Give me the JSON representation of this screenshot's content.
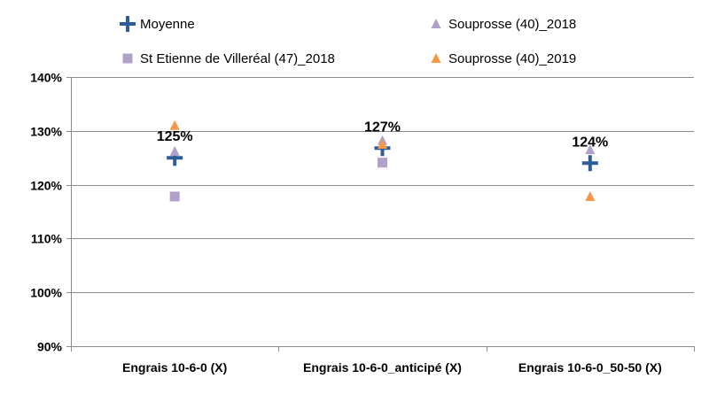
{
  "chart_data": {
    "type": "scatter",
    "title": "",
    "xlabel": "",
    "ylabel": "",
    "ylim": [
      0.9,
      1.4
    ],
    "ytick_step": 0.1,
    "y_format": "percent",
    "grid": true,
    "legend_position": "top",
    "categories": [
      "Engrais 10-6-0 (X)",
      "Engrais 10-6-0_anticipé (X)",
      "Engrais 10-6-0_50-50 (X)"
    ],
    "series": [
      {
        "name": "Moyenne",
        "marker": "plus",
        "color": "#2e5d98",
        "values": [
          1.25,
          1.268,
          1.24
        ]
      },
      {
        "name": "St Etienne de Villeréal (47)_2018",
        "marker": "square",
        "color": "#b1a0c9",
        "values": [
          1.178,
          1.241,
          null
        ]
      },
      {
        "name": "Souprosse (40)_2018",
        "marker": "triangle",
        "color": "#b1a0c9",
        "values": [
          1.262,
          1.282,
          1.265
        ]
      },
      {
        "name": "Souprosse (40)_2019",
        "marker": "triangle",
        "color": "#f79646",
        "values": [
          1.31,
          1.275,
          1.178
        ]
      }
    ],
    "data_labels": [
      "125%",
      "127%",
      "124%"
    ]
  }
}
